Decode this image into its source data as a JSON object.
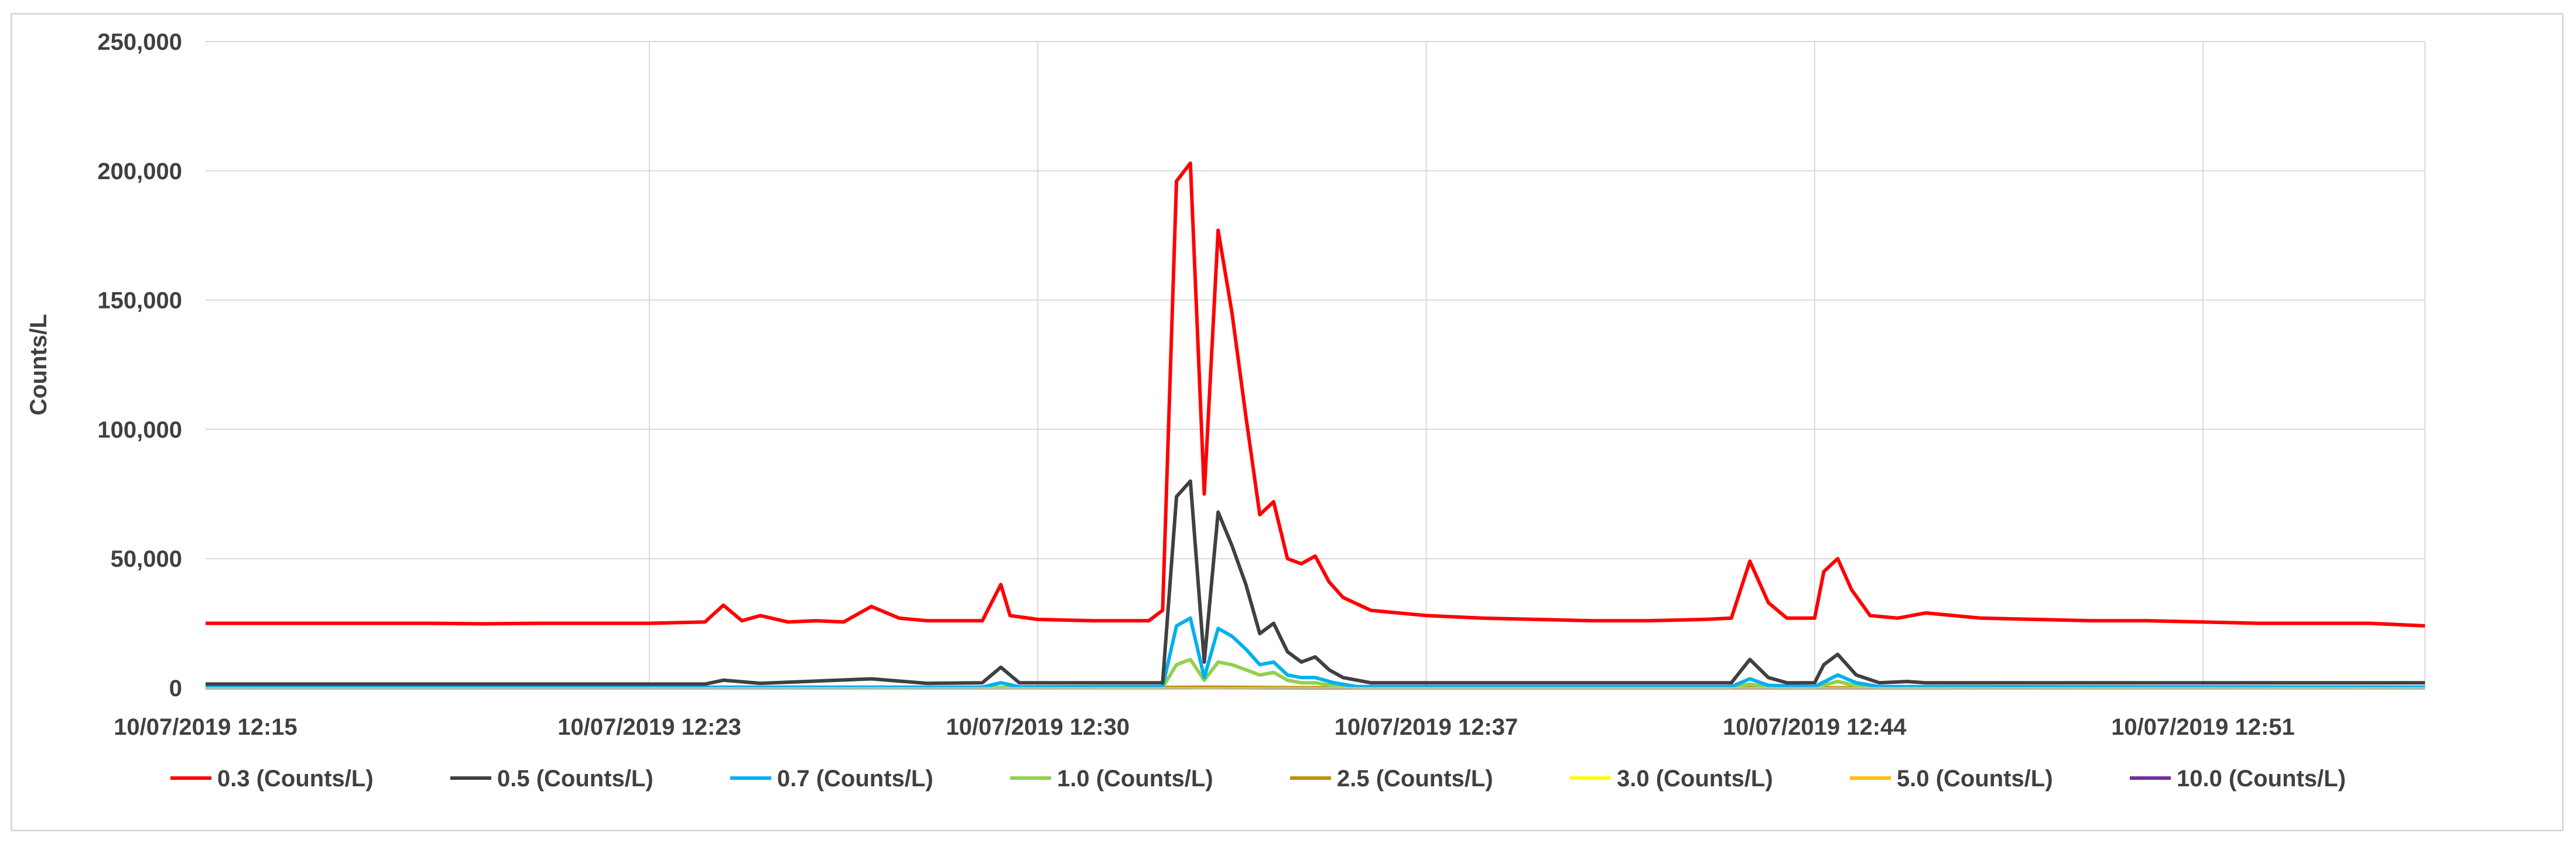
{
  "chart_data": {
    "type": "line",
    "title": "",
    "ylabel": "Counts/L",
    "xlabel": "",
    "ylim": [
      0,
      250000
    ],
    "yticks": [
      0,
      50000,
      100000,
      150000,
      200000,
      250000
    ],
    "ytick_labels": [
      "0",
      "50,000",
      "100,000",
      "150,000",
      "200,000",
      "250,000"
    ],
    "x_range_minutes": [
      "10/07/2019 12:15",
      "10/07/2019 12:55"
    ],
    "xtick_labels": [
      "10/07/2019 12:15",
      "10/07/2019 12:23",
      "10/07/2019 12:30",
      "10/07/2019 12:37",
      "10/07/2019 12:44",
      "10/07/2019 12:51"
    ],
    "grid": true,
    "legend_position": "bottom",
    "series": [
      {
        "name": "0.3 (Counts/L)",
        "color": "#ff0000",
        "points": [
          [
            "12:15:00",
            25000
          ],
          [
            "12:16:00",
            25000
          ],
          [
            "12:17:00",
            25000
          ],
          [
            "12:18:00",
            25000
          ],
          [
            "12:19:00",
            25000
          ],
          [
            "12:20:00",
            24800
          ],
          [
            "12:21:00",
            25000
          ],
          [
            "12:22:00",
            25000
          ],
          [
            "12:23:00",
            25000
          ],
          [
            "12:24:00",
            25500
          ],
          [
            "12:24:20",
            32000
          ],
          [
            "12:24:40",
            26000
          ],
          [
            "12:25:00",
            28000
          ],
          [
            "12:25:30",
            25500
          ],
          [
            "12:26:00",
            26000
          ],
          [
            "12:26:30",
            25500
          ],
          [
            "12:27:00",
            31500
          ],
          [
            "12:27:30",
            27000
          ],
          [
            "12:28:00",
            26000
          ],
          [
            "12:29:00",
            26000
          ],
          [
            "12:29:10",
            33000
          ],
          [
            "12:29:20",
            40000
          ],
          [
            "12:29:30",
            28000
          ],
          [
            "12:30:00",
            26500
          ],
          [
            "12:31:00",
            26000
          ],
          [
            "12:32:00",
            26000
          ],
          [
            "12:32:15",
            30000
          ],
          [
            "12:32:30",
            196000
          ],
          [
            "12:32:45",
            203000
          ],
          [
            "12:33:00",
            75000
          ],
          [
            "12:33:15",
            177000
          ],
          [
            "12:33:30",
            145000
          ],
          [
            "12:33:45",
            105000
          ],
          [
            "12:34:00",
            67000
          ],
          [
            "12:34:15",
            72000
          ],
          [
            "12:34:30",
            50000
          ],
          [
            "12:34:45",
            48000
          ],
          [
            "12:35:00",
            51000
          ],
          [
            "12:35:15",
            41000
          ],
          [
            "12:35:30",
            35000
          ],
          [
            "12:36:00",
            30000
          ],
          [
            "12:37:00",
            28000
          ],
          [
            "12:38:00",
            27000
          ],
          [
            "12:39:00",
            26500
          ],
          [
            "12:40:00",
            26000
          ],
          [
            "12:41:00",
            26000
          ],
          [
            "12:42:00",
            26500
          ],
          [
            "12:42:30",
            27000
          ],
          [
            "12:42:50",
            49000
          ],
          [
            "12:43:10",
            33000
          ],
          [
            "12:43:30",
            27000
          ],
          [
            "12:44:00",
            27000
          ],
          [
            "12:44:10",
            45000
          ],
          [
            "12:44:25",
            50000
          ],
          [
            "12:44:40",
            38000
          ],
          [
            "12:45:00",
            28000
          ],
          [
            "12:45:30",
            27000
          ],
          [
            "12:46:00",
            29000
          ],
          [
            "12:47:00",
            27000
          ],
          [
            "12:48:00",
            26500
          ],
          [
            "12:49:00",
            26000
          ],
          [
            "12:50:00",
            26000
          ],
          [
            "12:51:00",
            25500
          ],
          [
            "12:52:00",
            25000
          ],
          [
            "12:53:00",
            25000
          ],
          [
            "12:54:00",
            25000
          ],
          [
            "12:55:00",
            24000
          ]
        ]
      },
      {
        "name": "0.5 (Counts/L)",
        "color": "#404040",
        "points": [
          [
            "12:15:00",
            1500
          ],
          [
            "12:20:00",
            1500
          ],
          [
            "12:24:00",
            1500
          ],
          [
            "12:24:20",
            3000
          ],
          [
            "12:25:00",
            1800
          ],
          [
            "12:27:00",
            3500
          ],
          [
            "12:28:00",
            1800
          ],
          [
            "12:29:00",
            2000
          ],
          [
            "12:29:20",
            8000
          ],
          [
            "12:29:40",
            2000
          ],
          [
            "12:32:15",
            2000
          ],
          [
            "12:32:30",
            74000
          ],
          [
            "12:32:45",
            80000
          ],
          [
            "12:33:00",
            10000
          ],
          [
            "12:33:15",
            68000
          ],
          [
            "12:33:30",
            55000
          ],
          [
            "12:33:45",
            40000
          ],
          [
            "12:34:00",
            21000
          ],
          [
            "12:34:15",
            25000
          ],
          [
            "12:34:30",
            14000
          ],
          [
            "12:34:45",
            10000
          ],
          [
            "12:35:00",
            12000
          ],
          [
            "12:35:15",
            7000
          ],
          [
            "12:35:30",
            4000
          ],
          [
            "12:36:00",
            2000
          ],
          [
            "12:42:30",
            2000
          ],
          [
            "12:42:50",
            11000
          ],
          [
            "12:43:10",
            4000
          ],
          [
            "12:43:30",
            2000
          ],
          [
            "12:44:00",
            2000
          ],
          [
            "12:44:10",
            9000
          ],
          [
            "12:44:25",
            13000
          ],
          [
            "12:44:45",
            5000
          ],
          [
            "12:45:10",
            2000
          ],
          [
            "12:45:40",
            2500
          ],
          [
            "12:46:00",
            2000
          ],
          [
            "12:55:00",
            2000
          ]
        ]
      },
      {
        "name": "0.7 (Counts/L)",
        "color": "#00b0f0",
        "points": [
          [
            "12:15:00",
            300
          ],
          [
            "12:29:00",
            300
          ],
          [
            "12:29:20",
            2000
          ],
          [
            "12:29:40",
            400
          ],
          [
            "12:32:15",
            500
          ],
          [
            "12:32:30",
            24000
          ],
          [
            "12:32:45",
            27000
          ],
          [
            "12:33:00",
            4000
          ],
          [
            "12:33:15",
            23000
          ],
          [
            "12:33:30",
            20000
          ],
          [
            "12:33:45",
            15000
          ],
          [
            "12:34:00",
            9000
          ],
          [
            "12:34:15",
            10000
          ],
          [
            "12:34:30",
            5000
          ],
          [
            "12:34:45",
            4000
          ],
          [
            "12:35:00",
            4000
          ],
          [
            "12:35:20",
            2000
          ],
          [
            "12:35:45",
            500
          ],
          [
            "12:42:30",
            500
          ],
          [
            "12:42:50",
            3500
          ],
          [
            "12:43:10",
            1000
          ],
          [
            "12:44:00",
            500
          ],
          [
            "12:44:25",
            5000
          ],
          [
            "12:44:45",
            2000
          ],
          [
            "12:45:10",
            500
          ],
          [
            "12:55:00",
            300
          ]
        ]
      },
      {
        "name": "1.0 (Counts/L)",
        "color": "#92d050",
        "points": [
          [
            "12:15:00",
            100
          ],
          [
            "12:32:15",
            200
          ],
          [
            "12:32:30",
            9000
          ],
          [
            "12:32:45",
            11000
          ],
          [
            "12:33:00",
            3000
          ],
          [
            "12:33:15",
            10000
          ],
          [
            "12:33:30",
            9000
          ],
          [
            "12:33:45",
            7000
          ],
          [
            "12:34:00",
            5000
          ],
          [
            "12:34:15",
            6000
          ],
          [
            "12:34:30",
            3000
          ],
          [
            "12:34:45",
            2000
          ],
          [
            "12:35:00",
            2000
          ],
          [
            "12:35:20",
            800
          ],
          [
            "12:35:45",
            200
          ],
          [
            "12:42:30",
            200
          ],
          [
            "12:42:50",
            1500
          ],
          [
            "12:43:10",
            300
          ],
          [
            "12:44:00",
            200
          ],
          [
            "12:44:25",
            2500
          ],
          [
            "12:44:45",
            800
          ],
          [
            "12:45:10",
            200
          ],
          [
            "12:55:00",
            100
          ]
        ]
      },
      {
        "name": "2.5 (Counts/L)",
        "color": "#bf8f00",
        "points": [
          [
            "12:15:00",
            50
          ],
          [
            "12:32:30",
            200
          ],
          [
            "12:33:00",
            300
          ],
          [
            "12:34:00",
            150
          ],
          [
            "12:35:00",
            50
          ],
          [
            "12:55:00",
            50
          ]
        ]
      },
      {
        "name": "3.0 (Counts/L)",
        "color": "#ffff00",
        "points": [
          [
            "12:15:00",
            30
          ],
          [
            "12:33:00",
            100
          ],
          [
            "12:55:00",
            30
          ]
        ]
      },
      {
        "name": "5.0 (Counts/L)",
        "color": "#ffc000",
        "points": [
          [
            "12:15:00",
            20
          ],
          [
            "12:55:00",
            20
          ]
        ]
      },
      {
        "name": "10.0 (Counts/L)",
        "color": "#7030a0",
        "points": [
          [
            "12:15:00",
            10
          ],
          [
            "12:55:00",
            10
          ]
        ]
      }
    ]
  }
}
